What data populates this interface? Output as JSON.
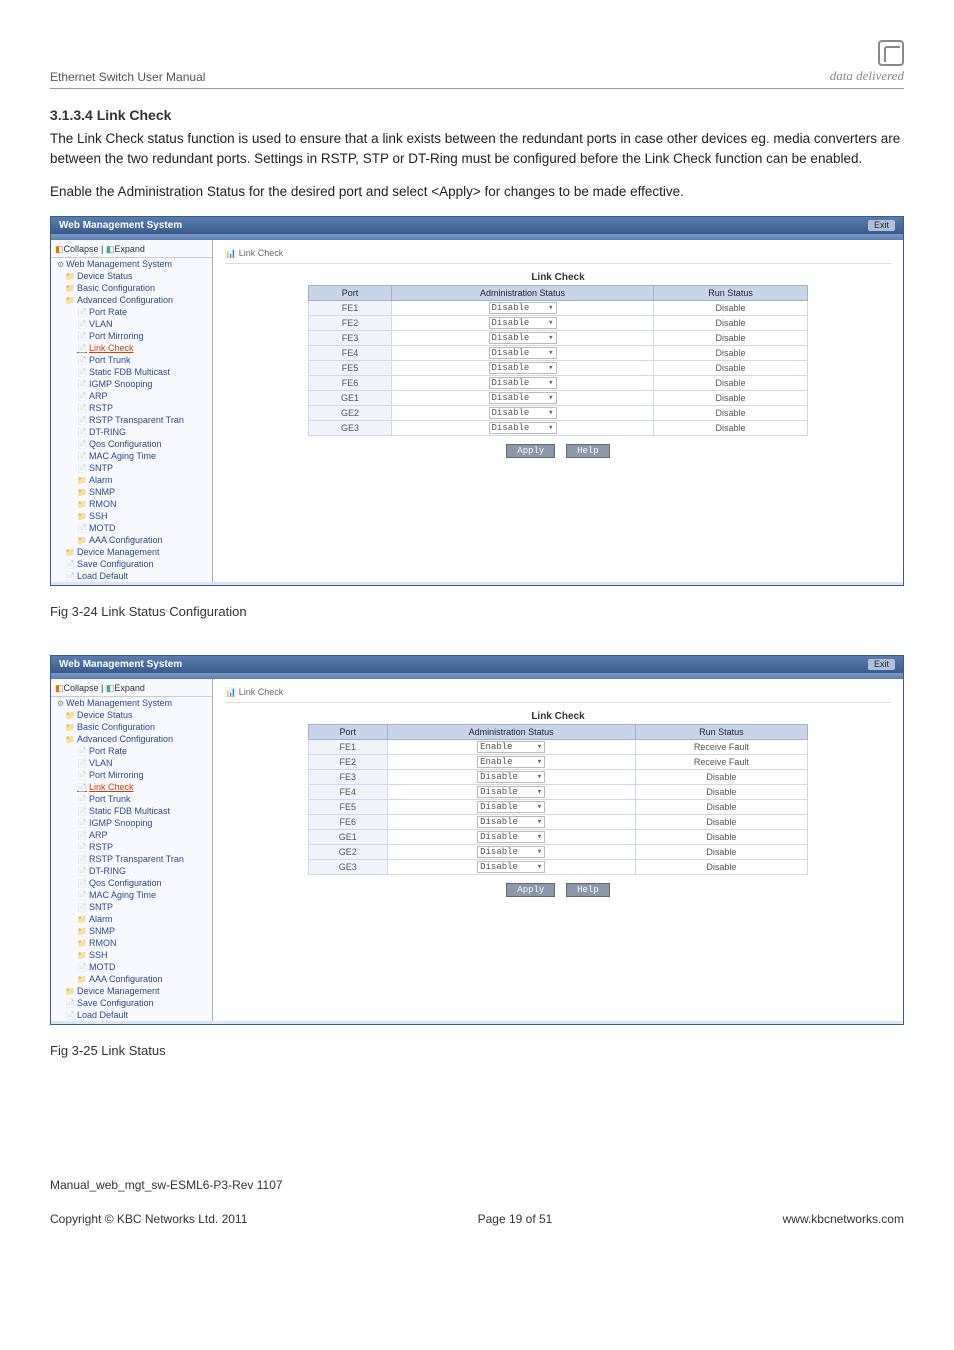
{
  "header": {
    "doc_title": "Ethernet Switch User Manual",
    "logo_text": "data delivered"
  },
  "section": {
    "heading": "3.1.3.4 Link Check",
    "para1": " The Link Check status function is used to ensure that a link exists between the redundant ports in case other devices eg. media converters are between the two redundant ports. Settings in RSTP, STP or DT-Ring must be configured before the Link Check function can be enabled.",
    "para2": "Enable the Administration Status for the desired port and select <Apply> for changes to be made effective."
  },
  "screenshot_common": {
    "window_title": "Web Management System",
    "exit_label": "Exit",
    "collapse_label": "Collapse",
    "expand_label": "Expand",
    "breadcrumb": "Link Check",
    "tree_root": "Web Management System",
    "tree": [
      {
        "label": "Device Status",
        "lvl": 1,
        "icon": "f"
      },
      {
        "label": "Basic Configuration",
        "lvl": 1,
        "icon": "f"
      },
      {
        "label": "Advanced Configuration",
        "lvl": 1,
        "icon": "f"
      },
      {
        "label": "Port Rate",
        "lvl": 2,
        "icon": "p"
      },
      {
        "label": "VLAN",
        "lvl": 2,
        "icon": "p"
      },
      {
        "label": "Port Mirroring",
        "lvl": 2,
        "icon": "p"
      },
      {
        "label": "Link Check",
        "lvl": 2,
        "icon": "p",
        "active": true
      },
      {
        "label": "Port Trunk",
        "lvl": 2,
        "icon": "p"
      },
      {
        "label": "Static FDB Multicast",
        "lvl": 2,
        "icon": "p"
      },
      {
        "label": "IGMP Snooping",
        "lvl": 2,
        "icon": "p"
      },
      {
        "label": "ARP",
        "lvl": 2,
        "icon": "p"
      },
      {
        "label": "RSTP",
        "lvl": 2,
        "icon": "p"
      },
      {
        "label": "RSTP Transparent Tran",
        "lvl": 2,
        "icon": "p"
      },
      {
        "label": "DT-RING",
        "lvl": 2,
        "icon": "p"
      },
      {
        "label": "Qos Configuration",
        "lvl": 2,
        "icon": "p"
      },
      {
        "label": "MAC Aging Time",
        "lvl": 2,
        "icon": "p"
      },
      {
        "label": "SNTP",
        "lvl": 2,
        "icon": "p"
      },
      {
        "label": "Alarm",
        "lvl": 2,
        "icon": "f"
      },
      {
        "label": "SNMP",
        "lvl": 2,
        "icon": "f"
      },
      {
        "label": "RMON",
        "lvl": 2,
        "icon": "f"
      },
      {
        "label": "SSH",
        "lvl": 2,
        "icon": "f"
      },
      {
        "label": "MOTD",
        "lvl": 2,
        "icon": "p"
      },
      {
        "label": "AAA Configuration",
        "lvl": 2,
        "icon": "f"
      },
      {
        "label": "Device Management",
        "lvl": 1,
        "icon": "f"
      },
      {
        "label": "Save Configuration",
        "lvl": 1,
        "icon": "p"
      },
      {
        "label": "Load Default",
        "lvl": 1,
        "icon": "p"
      }
    ],
    "table_title": "Link Check",
    "col_port": "Port",
    "col_admin": "Administration Status",
    "col_run": "Run Status",
    "apply_label": "Apply",
    "help_label": "Help"
  },
  "screenshot1": {
    "rows": [
      {
        "port": "FE1",
        "admin": "Disable",
        "run": "Disable"
      },
      {
        "port": "FE2",
        "admin": "Disable",
        "run": "Disable"
      },
      {
        "port": "FE3",
        "admin": "Disable",
        "run": "Disable"
      },
      {
        "port": "FE4",
        "admin": "Disable",
        "run": "Disable"
      },
      {
        "port": "FE5",
        "admin": "Disable",
        "run": "Disable"
      },
      {
        "port": "FE6",
        "admin": "Disable",
        "run": "Disable"
      },
      {
        "port": "GE1",
        "admin": "Disable",
        "run": "Disable"
      },
      {
        "port": "GE2",
        "admin": "Disable",
        "run": "Disable"
      },
      {
        "port": "GE3",
        "admin": "Disable",
        "run": "Disable"
      }
    ]
  },
  "screenshot2": {
    "rows": [
      {
        "port": "FE1",
        "admin": "Enable",
        "run": "Receive Fault"
      },
      {
        "port": "FE2",
        "admin": "Enable",
        "run": "Receive Fault"
      },
      {
        "port": "FE3",
        "admin": "Disable",
        "run": "Disable"
      },
      {
        "port": "FE4",
        "admin": "Disable",
        "run": "Disable"
      },
      {
        "port": "FE5",
        "admin": "Disable",
        "run": "Disable"
      },
      {
        "port": "FE6",
        "admin": "Disable",
        "run": "Disable"
      },
      {
        "port": "GE1",
        "admin": "Disable",
        "run": "Disable"
      },
      {
        "port": "GE2",
        "admin": "Disable",
        "run": "Disable"
      },
      {
        "port": "GE3",
        "admin": "Disable",
        "run": "Disable"
      }
    ]
  },
  "captions": {
    "fig1": "Fig 3-24 Link Status Configuration",
    "fig2": "Fig 3-25 Link Status"
  },
  "footer": {
    "manual_ref": "Manual_web_mgt_sw-ESML6-P3-Rev 1107",
    "copyright": "Copyright © KBC Networks Ltd. 2011",
    "page": "Page 19 of 51",
    "url": "www.kbcnetworks.com"
  }
}
